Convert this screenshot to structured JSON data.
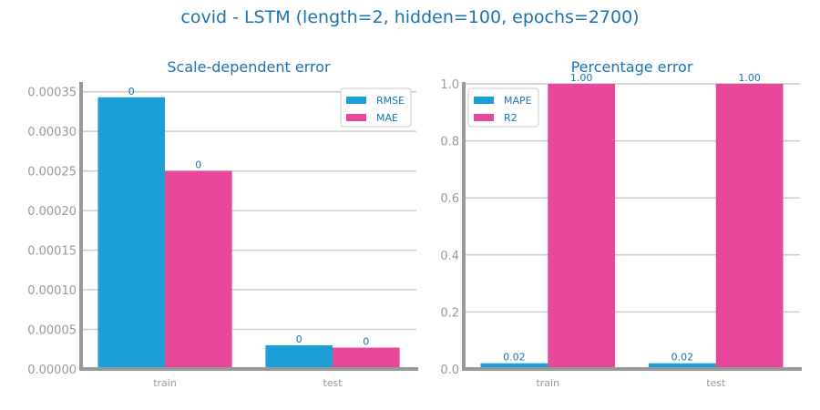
{
  "title": "covid - LSTM (length=2, hidden=100, epochs=2700)",
  "colors": {
    "series1": "#1b9fd6",
    "series2": "#e8489b",
    "text": "#1a73b0",
    "axis": "#999999",
    "grid": "#cccccc"
  },
  "chart_data": [
    {
      "type": "bar",
      "title": "Scale-dependent error",
      "categories": [
        "train",
        "test"
      ],
      "series": [
        {
          "name": "RMSE",
          "values": [
            0.000343,
            3e-05
          ],
          "labels": [
            "0",
            "0"
          ]
        },
        {
          "name": "MAE",
          "values": [
            0.00025,
            2.7e-05
          ],
          "labels": [
            "0",
            "0"
          ]
        }
      ],
      "ylim": [
        0,
        0.00036
      ],
      "yticks": [
        "0.00000",
        "0.00005",
        "0.00010",
        "0.00015",
        "0.00020",
        "0.00025",
        "0.00030",
        "0.00035"
      ],
      "ytick_values": [
        0,
        5e-05,
        0.0001,
        0.00015,
        0.0002,
        0.00025,
        0.0003,
        0.00035
      ],
      "grid": true,
      "legend": "top-right"
    },
    {
      "type": "bar",
      "title": "Percentage error",
      "categories": [
        "train",
        "test"
      ],
      "series": [
        {
          "name": "MAPE",
          "values": [
            0.02,
            0.02
          ],
          "labels": [
            "0.02",
            "0.02"
          ]
        },
        {
          "name": "R2",
          "values": [
            1.0,
            1.0
          ],
          "labels": [
            "1.00",
            "1.00"
          ]
        }
      ],
      "ylim": [
        0,
        1.0
      ],
      "yticks": [
        "0.0",
        "0.2",
        "0.4",
        "0.6",
        "0.8",
        "1.0"
      ],
      "ytick_values": [
        0,
        0.2,
        0.4,
        0.6,
        0.8,
        1.0
      ],
      "grid": true,
      "legend": "top-left"
    }
  ]
}
